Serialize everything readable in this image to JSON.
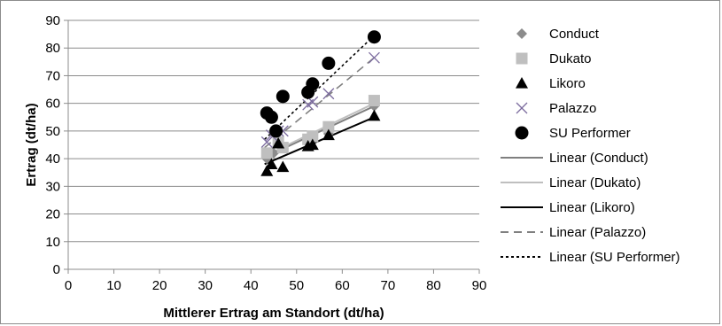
{
  "chart_data": {
    "type": "scatter",
    "xlabel": "Mittlerer Ertrag am Standort (dt/ha)",
    "ylabel": "Ertrag (dt/ha)",
    "xlim": [
      0,
      90
    ],
    "ylim": [
      0,
      90
    ],
    "xticks": [
      0,
      10,
      20,
      30,
      40,
      50,
      60,
      70,
      80,
      90
    ],
    "yticks": [
      0,
      10,
      20,
      30,
      40,
      50,
      60,
      70,
      80,
      90
    ],
    "grid": "horizontal",
    "legend_position": "right",
    "series": [
      {
        "name": "Conduct",
        "marker": "diamond",
        "color": "#8c8c8c",
        "points": [
          [
            43.5,
            40
          ],
          [
            45,
            42
          ],
          [
            52.5,
            46
          ],
          [
            53.5,
            47
          ],
          [
            57,
            49
          ],
          [
            67,
            59
          ]
        ],
        "trend": {
          "name": "Linear (Conduct)",
          "x": [
            43,
            67
          ],
          "y": [
            40.5,
            59
          ],
          "color": "#7f7f7f",
          "dash": "solid"
        }
      },
      {
        "name": "Dukato",
        "marker": "square",
        "color": "#bfbfbf",
        "points": [
          [
            43.5,
            42
          ],
          [
            46,
            46
          ],
          [
            47,
            44
          ],
          [
            52.5,
            47
          ],
          [
            53.5,
            48
          ],
          [
            57,
            51.5
          ],
          [
            67,
            61
          ]
        ],
        "trend": {
          "name": "Linear (Dukato)",
          "x": [
            43,
            67
          ],
          "y": [
            41,
            60
          ],
          "color": "#bfbfbf",
          "dash": "solid"
        }
      },
      {
        "name": "Likoro",
        "marker": "triangle",
        "color": "#000000",
        "points": [
          [
            43.5,
            35.5
          ],
          [
            44.5,
            38
          ],
          [
            46,
            45.5
          ],
          [
            47,
            37
          ],
          [
            52.5,
            44.5
          ],
          [
            53.5,
            45
          ],
          [
            57,
            48.5
          ],
          [
            67,
            55.5
          ]
        ],
        "trend": {
          "name": "Linear (Likoro)",
          "x": [
            43,
            67
          ],
          "y": [
            38,
            55
          ],
          "color": "#000000",
          "dash": "solid"
        }
      },
      {
        "name": "Palazzo",
        "marker": "x",
        "color": "#7b6b9e",
        "points": [
          [
            43.5,
            46
          ],
          [
            44.5,
            48.5
          ],
          [
            46,
            50
          ],
          [
            47,
            50
          ],
          [
            52.5,
            59.5
          ],
          [
            53.5,
            60.5
          ],
          [
            57,
            63.5
          ],
          [
            67,
            76.5
          ]
        ],
        "trend": {
          "name": "Linear (Palazzo)",
          "x": [
            43,
            67
          ],
          "y": [
            44,
            76.5
          ],
          "color": "#808080",
          "dash": "long"
        }
      },
      {
        "name": "SU Performer",
        "marker": "circle",
        "color": "#000000",
        "points": [
          [
            43.5,
            56.5
          ],
          [
            44.5,
            55
          ],
          [
            45.5,
            50
          ],
          [
            47,
            62.5
          ],
          [
            52.5,
            64
          ],
          [
            53.5,
            67
          ],
          [
            57,
            74.5
          ],
          [
            67,
            84
          ]
        ],
        "trend": {
          "name": "Linear (SU Performer)",
          "x": [
            43,
            67
          ],
          "y": [
            47,
            84.5
          ],
          "color": "#000000",
          "dash": "short"
        }
      }
    ]
  }
}
